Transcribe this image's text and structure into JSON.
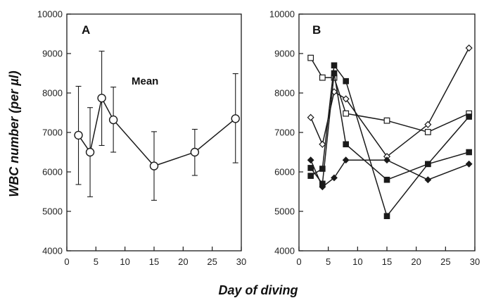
{
  "figure": {
    "ylabel": "WBC number (per µl)",
    "xlabel": "Day of diving"
  },
  "chart_data": [
    {
      "type": "line",
      "panel_label": "A",
      "annotation": "Mean",
      "xlim": [
        0,
        30
      ],
      "ylim": [
        4000,
        10000
      ],
      "x_ticks": [
        "0",
        "5",
        "10",
        "15",
        "20",
        "25",
        "30"
      ],
      "y_ticks": [
        "4000",
        "5000",
        "6000",
        "7000",
        "8000",
        "9000",
        "10000"
      ],
      "grid": false,
      "series": [
        {
          "marker": "open-circle",
          "x": [
            2,
            4,
            6,
            8,
            15,
            22,
            29
          ],
          "y": [
            6930,
            6500,
            7870,
            7320,
            6150,
            6500,
            7350
          ],
          "error_low": [
            5680,
            5370,
            6670,
            6500,
            5280,
            5910,
            6230
          ],
          "error_high": [
            8170,
            7630,
            9060,
            8150,
            7020,
            7080,
            8490
          ]
        }
      ]
    },
    {
      "type": "line",
      "panel_label": "B",
      "xlim": [
        0,
        30
      ],
      "ylim": [
        4000,
        10000
      ],
      "x_ticks": [
        "0",
        "5",
        "10",
        "15",
        "20",
        "25",
        "30"
      ],
      "y_ticks": [
        "4000",
        "5000",
        "6000",
        "7000",
        "8000",
        "9000",
        "10000"
      ],
      "grid": false,
      "series": [
        {
          "marker": "open-square",
          "x": [
            2,
            4,
            6,
            8,
            15,
            22,
            29
          ],
          "y": [
            8890,
            8390,
            8390,
            7480,
            7300,
            7010,
            7480
          ]
        },
        {
          "marker": "open-diamond",
          "x": [
            2,
            4,
            6,
            8,
            15,
            22,
            29
          ],
          "y": [
            7380,
            6700,
            8030,
            7850,
            6390,
            7200,
            9140
          ]
        },
        {
          "marker": "filled-square",
          "x": [
            2,
            4,
            6,
            8,
            15,
            22,
            29
          ],
          "y": [
            5900,
            6080,
            8700,
            8300,
            4880,
            6200,
            7400
          ]
        },
        {
          "marker": "filled-square",
          "x": [
            2,
            4,
            6,
            8,
            15,
            22,
            29
          ],
          "y": [
            6100,
            5700,
            8500,
            6700,
            5800,
            6200,
            6500
          ]
        },
        {
          "marker": "filled-diamond",
          "x": [
            2,
            4,
            6,
            8,
            15,
            22,
            29
          ],
          "y": [
            6300,
            5620,
            5850,
            6300,
            6300,
            5800,
            6200
          ]
        }
      ]
    }
  ]
}
